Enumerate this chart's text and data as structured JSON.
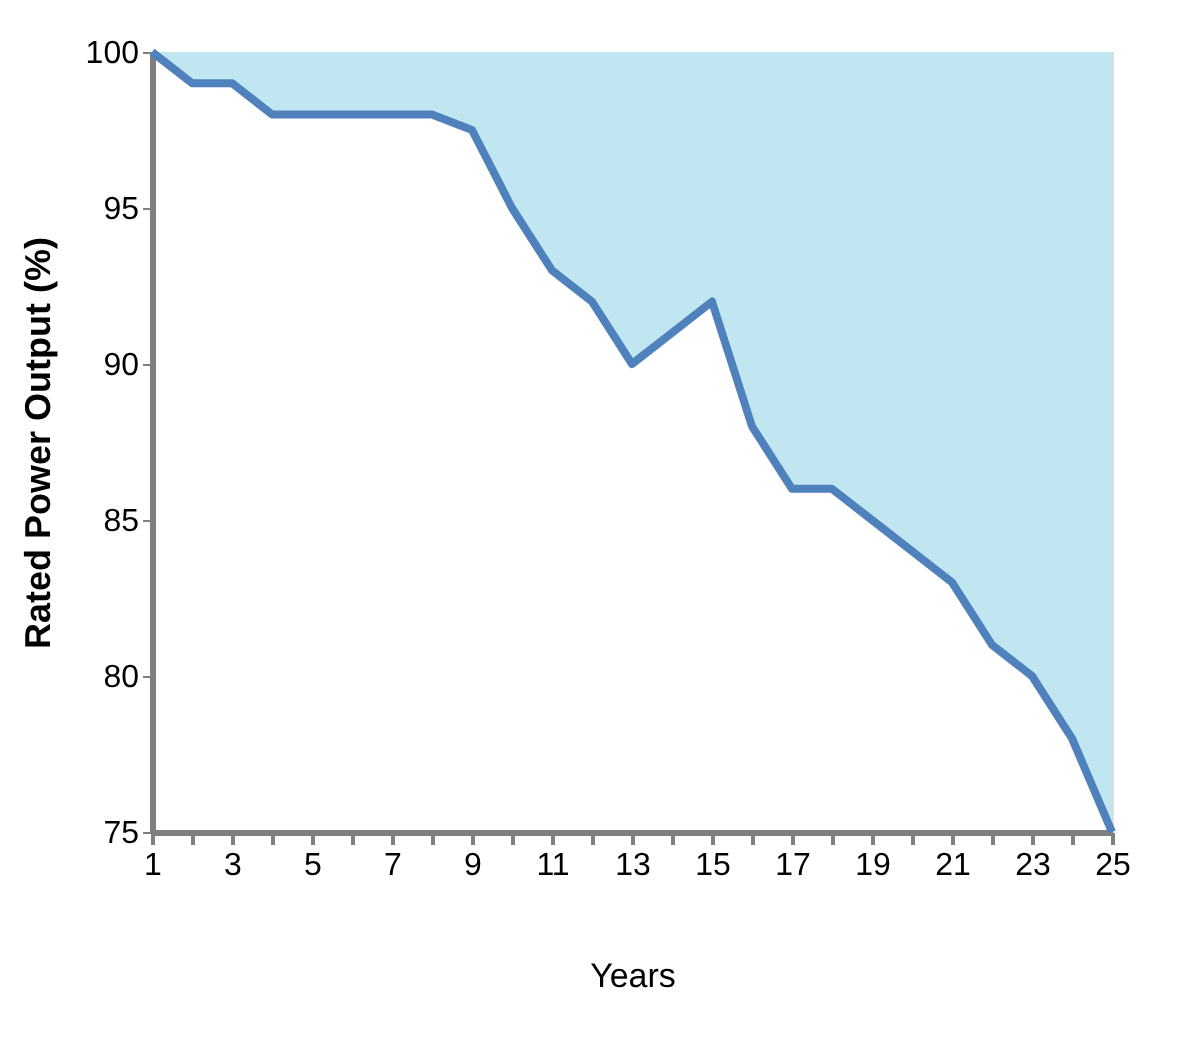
{
  "chart_data": {
    "type": "line",
    "xlabel": "Years",
    "ylabel": "Rated Power Output (%)",
    "x": [
      1,
      2,
      3,
      4,
      5,
      6,
      7,
      8,
      9,
      10,
      11,
      12,
      13,
      14,
      15,
      16,
      17,
      18,
      19,
      20,
      21,
      22,
      23,
      24,
      25
    ],
    "series": [
      {
        "color": "#4f81bd",
        "values": [
          100,
          99,
          99,
          98,
          98,
          98,
          98,
          98,
          97.5,
          95,
          93,
          92,
          90,
          91,
          92,
          88,
          86,
          86,
          85,
          84,
          83,
          81,
          80,
          78,
          75
        ],
        "lower": [
          100,
          99,
          99,
          98,
          98,
          98,
          98,
          98,
          97.5,
          95,
          93,
          92,
          90,
          91,
          92,
          88,
          86,
          86,
          85,
          84,
          83,
          81,
          80,
          78,
          75
        ],
        "upper": [
          100,
          100,
          100,
          100,
          100,
          100,
          100,
          100,
          100,
          100,
          100,
          100,
          100,
          100,
          100,
          100,
          100,
          100,
          100,
          100,
          100,
          100,
          100,
          100,
          100
        ]
      }
    ],
    "xlim": [
      1,
      25
    ],
    "ylim": [
      75,
      100
    ],
    "xticks": [
      1,
      {
        "value": 2,
        "label": null
      },
      3,
      {
        "value": 4,
        "label": null
      },
      5,
      {
        "value": 6,
        "label": null
      },
      7,
      {
        "value": 8,
        "label": null
      },
      9,
      {
        "value": 10,
        "label": null
      },
      11,
      {
        "value": 12,
        "label": null
      },
      13,
      {
        "value": 14,
        "label": null
      },
      15,
      {
        "value": 16,
        "label": null
      },
      17,
      {
        "value": 18,
        "label": null
      },
      19,
      {
        "value": 20,
        "label": null
      },
      21,
      {
        "value": 22,
        "label": null
      },
      23,
      {
        "value": 24,
        "label": null
      },
      25
    ],
    "yticks": [
      75,
      80,
      85,
      90,
      95,
      100
    ],
    "grid": false,
    "marker": "none",
    "line_style": "solid"
  }
}
